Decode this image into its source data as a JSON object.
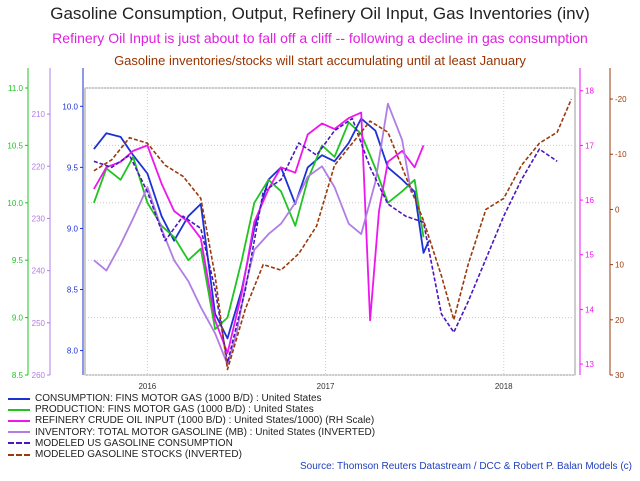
{
  "title": "Gasoline Consumption, Output, Refinery Oil Input, Gas Inventories (inv)",
  "subtitle1": "Refinery Oil Input is just about to fall off a cliff -- following a decline in gas consumption",
  "subtitle2": "Gasoline inventories/stocks will start accumulating until at least January",
  "source": "Source: Thomson Reuters Datastream / DCC & Robert P. Balan Models (c)",
  "colors": {
    "consumption": "#1c32d4",
    "production": "#1fc41f",
    "refinery": "#ee16ee",
    "inventory": "#b07de4",
    "modeled_consumption": "#4a16c0",
    "modeled_stocks": "#9c3a0c"
  },
  "chart_data": {
    "type": "line",
    "x_ticks": [
      "2016",
      "2017",
      "2018"
    ],
    "x_tick_values": [
      2016.0,
      2017.0,
      2018.0
    ],
    "xlim": [
      2015.65,
      2018.4
    ],
    "grid": true,
    "axes": {
      "production_axis": {
        "side": "left-outer",
        "ticks": [
          "11.0",
          "10.5",
          "10.0",
          "9.5",
          "9.0",
          "8.5"
        ],
        "range": [
          8.5,
          11.0
        ]
      },
      "inventory_axis": {
        "side": "left-middle",
        "ticks": [
          "210",
          "220",
          "230",
          "240",
          "250",
          "260"
        ],
        "range": [
          205,
          260
        ],
        "inverted": true
      },
      "consumption_axis": {
        "side": "left-inner",
        "ticks": [
          "10.0",
          "9.5",
          "9.0",
          "8.5",
          "8.0"
        ],
        "range": [
          7.8,
          10.15
        ]
      },
      "refinery_axis": {
        "side": "right-inner",
        "ticks": [
          "18",
          "17",
          "16",
          "15",
          "14",
          "13"
        ],
        "range": [
          12.8,
          18.05
        ]
      },
      "modeled_stocks_axis": {
        "side": "right-outer",
        "ticks": [
          "-20",
          "-10",
          "0",
          "10",
          "20",
          "30"
        ],
        "range": [
          -22,
          30
        ],
        "inverted": true
      }
    },
    "series": [
      {
        "name": "CONSUMPTION: FINS MOTOR GAS (1000 B/D) : United States",
        "axis": "consumption_axis",
        "color": "consumption",
        "x": [
          2015.7,
          2015.77,
          2015.85,
          2015.92,
          2016.0,
          2016.08,
          2016.15,
          2016.23,
          2016.3,
          2016.38,
          2016.45,
          2016.53,
          2016.6,
          2016.68,
          2016.75,
          2016.83,
          2016.9,
          2016.98,
          2017.05,
          2017.13,
          2017.2,
          2017.28,
          2017.35,
          2017.43,
          2017.5,
          2017.55,
          2017.58
        ],
        "y": [
          9.65,
          9.78,
          9.75,
          9.6,
          9.45,
          9.1,
          8.9,
          9.1,
          9.2,
          8.3,
          8.1,
          8.5,
          9.0,
          9.4,
          9.5,
          9.2,
          9.5,
          9.6,
          9.55,
          9.7,
          9.9,
          9.8,
          9.5,
          9.4,
          9.3,
          8.8,
          8.9
        ]
      },
      {
        "name": "PRODUCTION: FINS MOTOR GAS (1000 B/D) : United States",
        "axis": "production_axis",
        "color": "production",
        "x": [
          2015.7,
          2015.77,
          2015.85,
          2015.92,
          2016.0,
          2016.08,
          2016.15,
          2016.23,
          2016.3,
          2016.38,
          2016.45,
          2016.53,
          2016.6,
          2016.68,
          2016.75,
          2016.83,
          2016.9,
          2016.98,
          2017.05,
          2017.13,
          2017.2,
          2017.28,
          2017.35,
          2017.43,
          2017.5,
          2017.55
        ],
        "y": [
          10.0,
          10.3,
          10.2,
          10.4,
          10.0,
          9.8,
          9.7,
          9.5,
          9.6,
          8.9,
          9.0,
          9.5,
          10.0,
          10.2,
          10.1,
          9.8,
          10.2,
          10.5,
          10.4,
          10.7,
          10.6,
          10.3,
          10.0,
          10.1,
          10.2,
          9.7
        ]
      },
      {
        "name": "REFINERY CRUDE OIL INPUT (1000 B/D) : United States/1000) (RH Scale)",
        "axis": "refinery_axis",
        "color": "refinery",
        "x": [
          2015.7,
          2015.77,
          2015.85,
          2015.92,
          2016.0,
          2016.08,
          2016.15,
          2016.23,
          2016.3,
          2016.38,
          2016.45,
          2016.53,
          2016.6,
          2016.68,
          2016.75,
          2016.83,
          2016.9,
          2016.98,
          2017.05,
          2017.13,
          2017.2,
          2017.25,
          2017.3,
          2017.35,
          2017.43,
          2017.5,
          2017.55
        ],
        "y": [
          16.2,
          16.6,
          16.7,
          16.9,
          17.0,
          16.3,
          15.8,
          15.6,
          15.3,
          13.8,
          13.2,
          14.3,
          15.6,
          16.2,
          16.6,
          16.5,
          17.2,
          17.4,
          17.3,
          17.5,
          17.6,
          13.8,
          15.8,
          16.7,
          16.9,
          16.6,
          17.0
        ]
      },
      {
        "name": "INVENTORY: TOTAL MOTOR GASOLINE (MB) : United States (INVERTED)",
        "axis": "inventory_axis",
        "color": "inventory",
        "x": [
          2015.7,
          2015.77,
          2015.85,
          2015.92,
          2016.0,
          2016.08,
          2016.15,
          2016.23,
          2016.3,
          2016.38,
          2016.45,
          2016.5,
          2016.55,
          2016.6,
          2016.68,
          2016.75,
          2016.83,
          2016.9,
          2016.98,
          2017.05,
          2017.13,
          2017.2,
          2017.28,
          2017.35,
          2017.43,
          2017.48
        ],
        "y": [
          238,
          240,
          235,
          230,
          224,
          232,
          238,
          242,
          247,
          252,
          258,
          252,
          243,
          236,
          233,
          231,
          227,
          222,
          220,
          224,
          231,
          233,
          223,
          208,
          215,
          225
        ]
      },
      {
        "name": "MODELED US GASOLINE CONSUMPTION",
        "axis": "consumption_axis",
        "color": "modeled_consumption",
        "dashed": true,
        "x": [
          2015.7,
          2015.8,
          2015.9,
          2016.0,
          2016.1,
          2016.2,
          2016.3,
          2016.38,
          2016.45,
          2016.55,
          2016.65,
          2016.75,
          2016.85,
          2016.95,
          2017.05,
          2017.15,
          2017.25,
          2017.35,
          2017.45,
          2017.55,
          2017.65,
          2017.72,
          2017.8,
          2017.9,
          2018.0,
          2018.1,
          2018.2,
          2018.3
        ],
        "y": [
          9.55,
          9.5,
          9.6,
          9.3,
          8.9,
          9.1,
          9.0,
          8.5,
          7.9,
          8.5,
          9.3,
          9.4,
          9.7,
          9.6,
          9.8,
          9.9,
          9.5,
          9.2,
          9.1,
          9.05,
          8.3,
          8.15,
          8.4,
          8.75,
          9.1,
          9.4,
          9.65,
          9.55
        ]
      },
      {
        "name": "MODELED GASOLINE STOCKS (INVERTED)",
        "axis": "modeled_stocks_axis",
        "color": "modeled_stocks",
        "dashed": true,
        "x": [
          2015.7,
          2015.8,
          2015.9,
          2016.0,
          2016.1,
          2016.2,
          2016.3,
          2016.38,
          2016.45,
          2016.55,
          2016.65,
          2016.75,
          2016.85,
          2016.95,
          2017.05,
          2017.15,
          2017.25,
          2017.35,
          2017.45,
          2017.55,
          2017.65,
          2017.72,
          2017.8,
          2017.9,
          2018.0,
          2018.1,
          2018.2,
          2018.3,
          2018.38
        ],
        "y": [
          -7,
          -9,
          -13,
          -12,
          -8,
          -6,
          -2,
          12,
          29,
          18,
          10,
          11,
          8,
          3,
          -8,
          -12,
          -16,
          -14,
          -6,
          2,
          12,
          20,
          10,
          0,
          -2,
          -8,
          -12,
          -14,
          -20
        ]
      }
    ]
  }
}
